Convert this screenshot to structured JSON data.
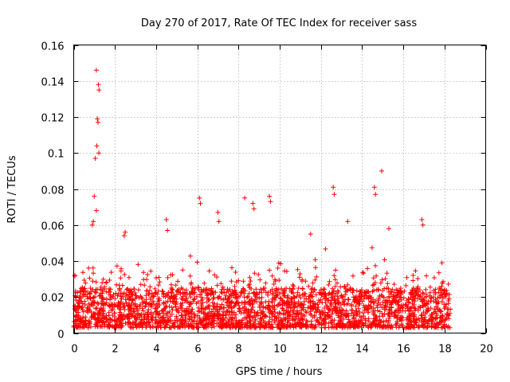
{
  "chart_data": {
    "type": "scatter",
    "title": "Day 270 of 2017, Rate Of TEC Index for receiver sass",
    "xlabel": "GPS time / hours",
    "ylabel": "ROTI / TECUs",
    "xlim": [
      0,
      20
    ],
    "ylim": [
      0,
      0.16
    ],
    "xticks": [
      0,
      2,
      4,
      6,
      8,
      10,
      12,
      14,
      16,
      18,
      20
    ],
    "yticks": [
      0,
      0.02,
      0.04,
      0.06,
      0.08,
      0.1,
      0.12,
      0.14,
      0.16
    ],
    "xtick_labels": [
      "0",
      "2",
      "4",
      "6",
      "8",
      "10",
      "12",
      "14",
      "16",
      "18",
      "20"
    ],
    "ytick_labels": [
      "0",
      "0.02",
      "0.04",
      "0.06",
      "0.08",
      "0.1",
      "0.12",
      "0.14",
      "0.16"
    ],
    "grid": true,
    "marker": "+",
    "marker_color": "#ff0000",
    "data_x_range": [
      0,
      18.3
    ],
    "series": [
      {
        "name": "ROTI",
        "note": "dense band of roughly 0.002-0.035 TECUs across the whole day; notable outliers listed below",
        "x": [
          1.1,
          1.2,
          1.23,
          1.15,
          1.18,
          1.12,
          1.05,
          1.22,
          1.0,
          1.1,
          0.95,
          0.9,
          2.5,
          2.45,
          4.5,
          4.55,
          6.1,
          6.15,
          7.0,
          7.05,
          8.3,
          8.7,
          8.75,
          9.5,
          9.55,
          12.6,
          12.65,
          14.6,
          14.65,
          14.95,
          16.9,
          16.95,
          11.5,
          13.3,
          15.3
        ],
        "y": [
          0.146,
          0.138,
          0.135,
          0.119,
          0.117,
          0.104,
          0.097,
          0.1,
          0.076,
          0.068,
          0.062,
          0.06,
          0.056,
          0.054,
          0.063,
          0.057,
          0.075,
          0.072,
          0.067,
          0.062,
          0.075,
          0.072,
          0.069,
          0.076,
          0.073,
          0.081,
          0.077,
          0.081,
          0.077,
          0.09,
          0.063,
          0.06,
          0.055,
          0.062,
          0.058
        ]
      }
    ]
  }
}
